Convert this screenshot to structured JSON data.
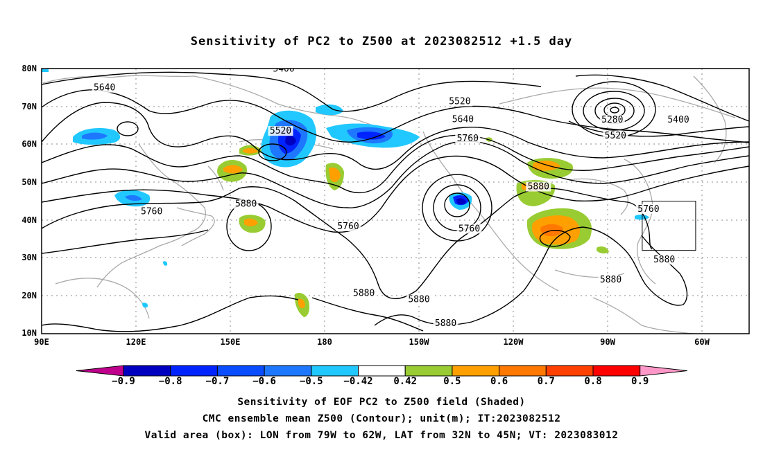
{
  "title": "Sensitivity of PC2 to Z500 at 2023082512 +1.5 day",
  "lat_labels": [
    "80N",
    "70N",
    "60N",
    "50N",
    "40N",
    "30N",
    "20N",
    "10N"
  ],
  "lon_labels": [
    "90E",
    "120E",
    "150E",
    "180",
    "150W",
    "120W",
    "90W",
    "60W"
  ],
  "contour_labels": [
    {
      "text": "5400",
      "lon": 167,
      "lat": 79.2
    },
    {
      "text": "5640",
      "lon": 110,
      "lat": 74.2
    },
    {
      "text": "5520",
      "lon": 166,
      "lat": 62.8
    },
    {
      "text": "5760",
      "lon": 125,
      "lat": 41.5
    },
    {
      "text": "5880",
      "lon": 155,
      "lat": 43.5
    },
    {
      "text": "5760",
      "lon": -172.5,
      "lat": 37.6
    },
    {
      "text": "5880",
      "lon": -167.5,
      "lat": 20.0
    },
    {
      "text": "5880",
      "lon": -150,
      "lat": 18.3
    },
    {
      "text": "5880",
      "lon": -141.5,
      "lat": 12.0
    },
    {
      "text": "5760",
      "lon": -134,
      "lat": 37.0
    },
    {
      "text": "5520",
      "lon": -137,
      "lat": 70.6
    },
    {
      "text": "5640",
      "lon": -136,
      "lat": 65.8
    },
    {
      "text": "5760",
      "lon": -134.5,
      "lat": 60.8
    },
    {
      "text": "5880",
      "lon": -112,
      "lat": 48.1
    },
    {
      "text": "5280",
      "lon": -88.5,
      "lat": 65.7
    },
    {
      "text": "5520",
      "lon": -87.5,
      "lat": 61.5
    },
    {
      "text": "5400",
      "lon": -67.5,
      "lat": 65.7
    },
    {
      "text": "5760",
      "lon": -77,
      "lat": 42.2
    },
    {
      "text": "5880",
      "lon": -72,
      "lat": 28.8
    },
    {
      "text": "5880",
      "lon": -89,
      "lat": 23.5
    }
  ],
  "colorbar": {
    "labels": [
      "-0.9",
      "-0.8",
      "-0.7",
      "-0.6",
      "-0.5",
      "-0.42",
      "0.42",
      "0.5",
      "0.6",
      "0.7",
      "0.8",
      "0.9"
    ],
    "colors": [
      "#0000c0",
      "#0024ff",
      "#0a4cff",
      "#1e78ff",
      "#20c8ff",
      "#ffffff",
      "#98cc32",
      "#ffa000",
      "#ff7800",
      "#ff4000",
      "#ff0000"
    ],
    "end_low": "#c0008c",
    "end_high": "#ff98c8"
  },
  "box": {
    "lon_min": -79,
    "lon_max": -62,
    "lat_min": 32,
    "lat_max": 45
  },
  "captions": [
    "Sensitivity of EOF PC2 to Z500 field (Shaded)",
    "CMC ensemble mean Z500 (Contour); unit(m); IT:2023082512",
    "Valid area (box): LON from 79W to 62W, LAT from 32N to 45N; VT: 2023083012"
  ]
}
